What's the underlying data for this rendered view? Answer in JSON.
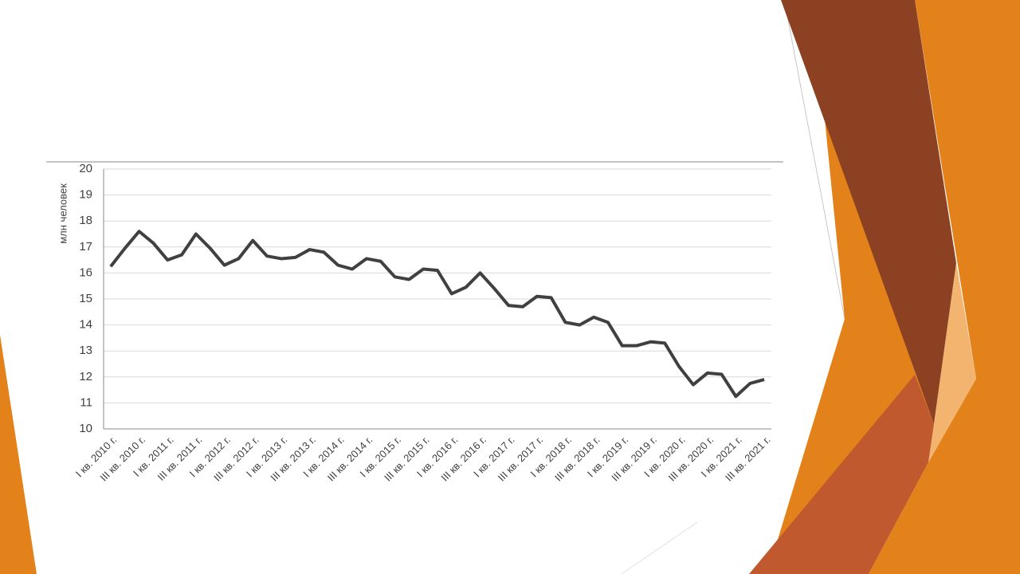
{
  "chart_data": {
    "type": "line",
    "y_label": "млн человек",
    "categories": [
      "I кв. 2010 г.",
      null,
      "III кв. 2010 г.",
      null,
      "I кв. 2011 г.",
      null,
      "III кв. 2011 г.",
      null,
      "I кв. 2012 г.",
      null,
      "III кв. 2012 г.",
      null,
      "I кв. 2013 г.",
      null,
      "III кв. 2013 г.",
      null,
      "I кв. 2014 г.",
      null,
      "III кв. 2014 г.",
      null,
      "I кв. 2015 г.",
      null,
      "III кв. 2015 г.",
      null,
      "I кв. 2016 г.",
      null,
      "III кв. 2016 г.",
      null,
      "I кв. 2017 г.",
      null,
      "III кв. 2017 г.",
      null,
      "I кв. 2018 г.",
      null,
      "III кв. 2018 г.",
      null,
      "I кв. 2019 г.",
      null,
      "III кв. 2019 г.",
      null,
      "I кв. 2020 г.",
      null,
      "III кв. 2020 г.",
      null,
      "I кв. 2021 г.",
      null,
      "III кв. 2021 г."
    ],
    "values": [
      16.25,
      16.95,
      17.6,
      17.15,
      16.5,
      16.7,
      17.5,
      16.95,
      16.3,
      16.55,
      17.25,
      16.65,
      16.55,
      16.6,
      16.9,
      16.8,
      16.3,
      16.15,
      16.55,
      16.45,
      15.85,
      15.75,
      16.15,
      16.1,
      15.2,
      15.45,
      16.0,
      15.4,
      14.75,
      14.7,
      15.1,
      15.05,
      14.1,
      14.0,
      14.3,
      14.1,
      13.2,
      13.2,
      13.35,
      13.3,
      12.4,
      11.7,
      12.15,
      12.1,
      11.25,
      11.75,
      11.9
    ],
    "color": "#404040",
    "ylim": [
      10,
      20
    ],
    "yticks": [
      10,
      11,
      12,
      13,
      14,
      15,
      16,
      17,
      18,
      19,
      20
    ],
    "grid": true
  }
}
